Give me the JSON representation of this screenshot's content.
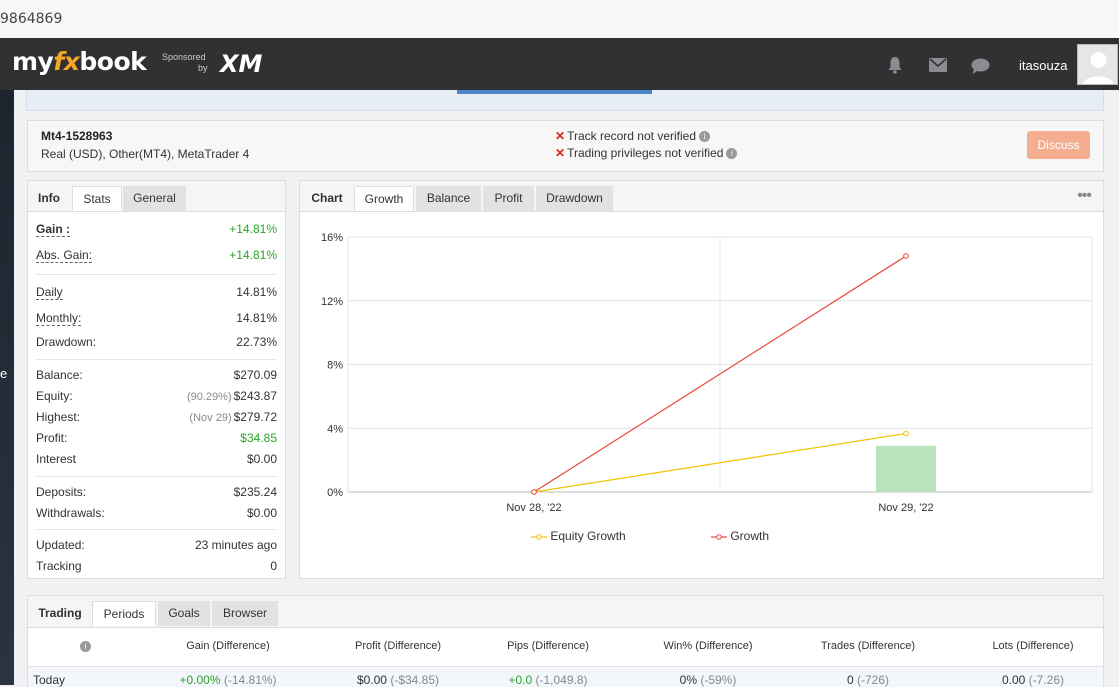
{
  "browser": {
    "url_fragment": "9864869"
  },
  "nav": {
    "logo_my": "my",
    "logo_fx": "fx",
    "logo_book": "book",
    "sponsored": "Sponsored",
    "by": "by",
    "sponsor_brand": "XM",
    "username": "itasouza",
    "icons": [
      "bell-icon",
      "envelope-icon",
      "chat-icon"
    ]
  },
  "left_strip_text": "e",
  "account": {
    "name": "Mt4-1528963",
    "subtitle": "Real (USD), Other(MT4), MetaTrader 4",
    "track_record": "Track record not verified",
    "trading_privileges": "Trading privileges not verified",
    "discuss_label": "Discuss"
  },
  "stats_panel": {
    "tabs": [
      "Info",
      "Stats",
      "General"
    ],
    "active_tab": "Stats",
    "rows": {
      "gain": {
        "label": "Gain :",
        "value": "+14.81%"
      },
      "abs_gain": {
        "label": "Abs. Gain:",
        "value": "+14.81%"
      },
      "daily": {
        "label": "Daily",
        "value": "14.81%"
      },
      "monthly": {
        "label": "Monthly:",
        "value": "14.81%"
      },
      "drawdown": {
        "label": "Drawdown:",
        "value": "22.73%"
      },
      "balance": {
        "label": "Balance:",
        "value": "$270.09"
      },
      "equity": {
        "label": "Equity:",
        "prefix": "(90.29%)",
        "value": "$243.87"
      },
      "highest": {
        "label": "Highest:",
        "prefix": "(Nov 29)",
        "value": "$279.72"
      },
      "profit": {
        "label": "Profit:",
        "value": "$34.85"
      },
      "interest": {
        "label": "Interest",
        "value": "$0.00"
      },
      "deposits": {
        "label": "Deposits:",
        "value": "$235.24"
      },
      "withdrawals": {
        "label": "Withdrawals:",
        "value": "$0.00"
      },
      "updated": {
        "label": "Updated:",
        "value": "23 minutes ago"
      },
      "tracking": {
        "label": "Tracking",
        "value": "0"
      }
    }
  },
  "chart_panel": {
    "tabs": [
      "Chart",
      "Growth",
      "Balance",
      "Profit",
      "Drawdown"
    ],
    "active_tab": "Growth",
    "more_label": "•••"
  },
  "chart_data": {
    "type": "line",
    "categories": [
      "Nov 28, '22",
      "Nov 29, '22"
    ],
    "yticks": [
      "0%",
      "4%",
      "8%",
      "12%",
      "16%"
    ],
    "ylim": [
      0,
      16
    ],
    "series": [
      {
        "name": "Equity Growth",
        "color": "#f2c200",
        "values": [
          0,
          3.67
        ]
      },
      {
        "name": "Growth",
        "color": "#e8463a",
        "values": [
          0,
          14.81
        ]
      }
    ],
    "bars": {
      "color": "#b9e3bd",
      "values": [
        0,
        2.9
      ]
    },
    "grid": true,
    "legend_placement": "bottom-center"
  },
  "periods_panel": {
    "tabs": [
      "Trading",
      "Periods",
      "Goals",
      "Browser"
    ],
    "active_tab": "Periods",
    "columns": [
      "Gain (Difference)",
      "Profit (Difference)",
      "Pips (Difference)",
      "Win% (Difference)",
      "Trades (Difference)",
      "Lots (Difference)"
    ],
    "today": {
      "label": "Today",
      "gain": "+0.00%",
      "gain_diff": "(-14.81%)",
      "profit": "$0.00",
      "profit_diff": "(-$34.85)",
      "pips": "+0.0",
      "pips_diff": "(-1,049.8)",
      "win": "0%",
      "win_diff": "(-59%)",
      "trades": "0",
      "trades_diff": "(-726)",
      "lots": "0.00",
      "lots_diff": "(-7.26)"
    }
  }
}
